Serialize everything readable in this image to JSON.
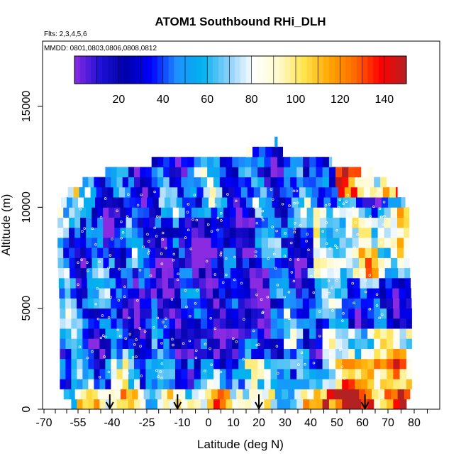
{
  "chart_data": {
    "type": "heatmap",
    "title": "ATOM1 Southbound RHi_DLH",
    "subtitle_line1": "Flts: 2,3,4,5,6",
    "subtitle_line2": "MMDD: 0801,0803,0806,0808,0812",
    "xlabel": "Latitude (deg N)",
    "ylabel": "Altitude (m)",
    "x_ticks": [
      "-70",
      "-55",
      "-40",
      "-25",
      "-10",
      "0",
      "10",
      "20",
      "30",
      "40",
      "50",
      "60",
      "70",
      "80"
    ],
    "x_tick_values": [
      -70,
      -55,
      -40,
      -25,
      -10,
      0,
      10,
      20,
      30,
      40,
      50,
      60,
      70,
      80
    ],
    "y_ticks": [
      "0",
      "5000",
      "10000",
      "15000"
    ],
    "y_tick_values": [
      0,
      5000,
      10000,
      15000
    ],
    "ylim": [
      0,
      17500
    ],
    "colorbar": {
      "range": [
        0,
        150
      ],
      "ticks": [
        "20",
        "40",
        "60",
        "80",
        "100",
        "120",
        "140"
      ],
      "tick_values": [
        20,
        40,
        60,
        80,
        100,
        120,
        140
      ],
      "colors": [
        "#8a2be2",
        "#1f10d6",
        "#0000a8",
        "#0000ff",
        "#1e90ff",
        "#00b2ee",
        "#87cefa",
        "#ffffff",
        "#fffacd",
        "#ffe44d",
        "#ffa500",
        "#ff6a00",
        "#ff0000",
        "#b22222"
      ]
    },
    "markers_latitudes": [
      -41,
      -12,
      20,
      61
    ],
    "altitude_bins_m": [
      250,
      750,
      1250,
      1750,
      2250,
      2750,
      3250,
      3750,
      4250,
      4750,
      5250,
      5750,
      6250,
      6750,
      7250,
      7750,
      8250,
      8750,
      9250,
      9750,
      10250,
      10750,
      11250,
      11750,
      12250,
      12750,
      13250
    ],
    "latitude_coverage": [
      {
        "alt": 250,
        "min": -58,
        "max": 77
      },
      {
        "alt": 1000,
        "min": -63,
        "max": 79
      },
      {
        "alt": 2500,
        "min": -63,
        "max": 79
      },
      {
        "alt": 5000,
        "min": -63,
        "max": 79
      },
      {
        "alt": 7500,
        "min": -64,
        "max": 78
      },
      {
        "alt": 10000,
        "min": -64,
        "max": 78
      },
      {
        "alt": 11000,
        "min": -58,
        "max": 72
      },
      {
        "alt": 11750,
        "min": -43,
        "max": 64
      },
      {
        "alt": 12250,
        "min": -23,
        "max": 48
      },
      {
        "alt": 12750,
        "min": 15,
        "max": 29
      },
      {
        "alt": 13250,
        "min": 26,
        "max": 27
      }
    ]
  }
}
